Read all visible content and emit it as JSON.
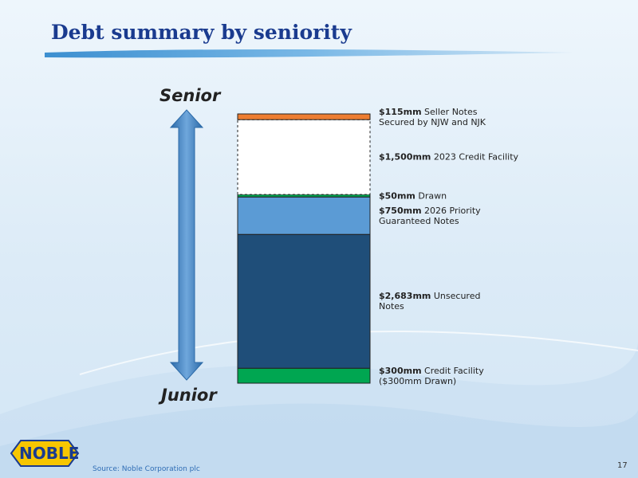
{
  "chart_data": {
    "type": "stacked-bar",
    "title": "Debt summary by seniority",
    "top_label": "Senior",
    "bottom_label": "Junior",
    "series": [
      {
        "name": "Credit Facility\n($300mm Drawn)",
        "color": "#00a651",
        "values": [
          300
        ],
        "value_labels": [
          "$300mm"
        ]
      },
      {
        "name": "Unsecured\nNotes",
        "color": "#1f4e79",
        "values": [
          2683
        ],
        "value_labels": [
          "$2,683mm"
        ]
      },
      {
        "name": "2026 Priority\nGuaranteed Notes",
        "color": "#5b9bd5",
        "values": [
          750
        ],
        "value_labels": [
          "$750mm"
        ]
      },
      {
        "name": "Drawn",
        "color": "#00a651",
        "values": [
          50
        ],
        "value_labels": [
          "$50mm"
        ]
      },
      {
        "name": "2023 Credit Facility",
        "color": "#ffffff",
        "dashed": true,
        "values": [
          1500
        ],
        "value_labels": [
          "$1,500mm"
        ]
      },
      {
        "name": "Seller Notes\nSecured by NJW and NJK",
        "color": "#ed7d31",
        "values": [
          115
        ],
        "value_labels": [
          "$115mm"
        ]
      }
    ]
  },
  "source": "Source: Noble Corporation plc",
  "page_number": "17",
  "logo": "NOBLE"
}
